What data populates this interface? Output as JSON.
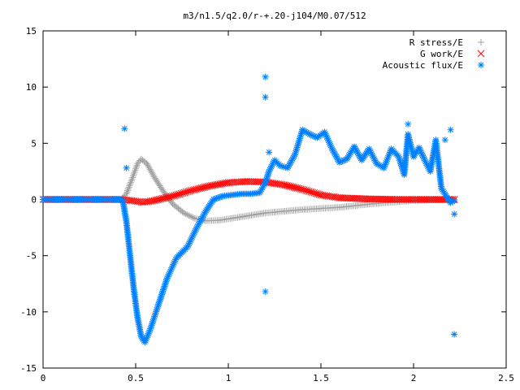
{
  "chart_data": {
    "type": "scatter",
    "title": "m3/n1.5/q2.0/r-+.20-j104/M0.07/512",
    "xlabel": "",
    "ylabel": "",
    "xlim": [
      0,
      2.5
    ],
    "ylim": [
      -15,
      15
    ],
    "xticks": [
      {
        "v": 0,
        "label": "0"
      },
      {
        "v": 0.5,
        "label": "0.5"
      },
      {
        "v": 1,
        "label": "1"
      },
      {
        "v": 1.5,
        "label": "1.5"
      },
      {
        "v": 2,
        "label": "2"
      },
      {
        "v": 2.5,
        "label": "2.5"
      }
    ],
    "yticks": [
      {
        "v": -15,
        "label": "-15"
      },
      {
        "v": -10,
        "label": "-10"
      },
      {
        "v": -5,
        "label": "-5"
      },
      {
        "v": 0,
        "label": "0"
      },
      {
        "v": 5,
        "label": "5"
      },
      {
        "v": 10,
        "label": "10"
      },
      {
        "v": 15,
        "label": "15"
      }
    ],
    "grid": false,
    "legend_position": "top-right",
    "series": [
      {
        "name": "R stress/E",
        "marker": "plus",
        "color": "#a0a0a0",
        "points": [
          [
            0,
            0
          ],
          [
            0.42,
            0
          ],
          [
            0.45,
            0.5
          ],
          [
            0.48,
            1.8
          ],
          [
            0.51,
            3.2
          ],
          [
            0.53,
            3.6
          ],
          [
            0.56,
            3.2
          ],
          [
            0.6,
            2.0
          ],
          [
            0.65,
            0.7
          ],
          [
            0.7,
            -0.4
          ],
          [
            0.76,
            -1.2
          ],
          [
            0.82,
            -1.7
          ],
          [
            0.88,
            -1.9
          ],
          [
            0.95,
            -1.85
          ],
          [
            1.05,
            -1.6
          ],
          [
            1.2,
            -1.2
          ],
          [
            1.4,
            -0.9
          ],
          [
            1.6,
            -0.7
          ],
          [
            1.8,
            -0.35
          ],
          [
            2.0,
            -0.1
          ],
          [
            2.22,
            0
          ]
        ]
      },
      {
        "name": "G work/E",
        "marker": "cross",
        "color": "#ff0000",
        "points": [
          [
            0,
            0
          ],
          [
            0.42,
            0
          ],
          [
            0.48,
            -0.1
          ],
          [
            0.54,
            -0.25
          ],
          [
            0.6,
            -0.1
          ],
          [
            0.7,
            0.3
          ],
          [
            0.8,
            0.8
          ],
          [
            0.9,
            1.2
          ],
          [
            1.0,
            1.5
          ],
          [
            1.1,
            1.6
          ],
          [
            1.2,
            1.55
          ],
          [
            1.3,
            1.3
          ],
          [
            1.4,
            0.9
          ],
          [
            1.5,
            0.4
          ],
          [
            1.6,
            0.15
          ],
          [
            1.75,
            0.05
          ],
          [
            1.9,
            0
          ],
          [
            2.22,
            0
          ]
        ]
      },
      {
        "name": "Acoustic flux/E",
        "marker": "star",
        "color": "#0080ff",
        "points": [
          [
            0,
            0
          ],
          [
            0.43,
            0
          ],
          [
            0.45,
            -2
          ],
          [
            0.47,
            -5
          ],
          [
            0.49,
            -8
          ],
          [
            0.51,
            -10.5
          ],
          [
            0.53,
            -12.2
          ],
          [
            0.55,
            -12.7
          ],
          [
            0.58,
            -11.5
          ],
          [
            0.62,
            -9.5
          ],
          [
            0.67,
            -7
          ],
          [
            0.72,
            -5.2
          ],
          [
            0.78,
            -4.2
          ],
          [
            0.83,
            -2.5
          ],
          [
            0.88,
            -1
          ],
          [
            0.92,
            0
          ],
          [
            0.97,
            0.3
          ],
          [
            1.02,
            0.4
          ],
          [
            1.07,
            0.5
          ],
          [
            1.12,
            0.5
          ],
          [
            1.17,
            0.6
          ],
          [
            1.2,
            1.5
          ],
          [
            1.22,
            2.5
          ],
          [
            1.25,
            3.5
          ],
          [
            1.28,
            3.0
          ],
          [
            1.32,
            2.8
          ],
          [
            1.36,
            4.0
          ],
          [
            1.4,
            6.2
          ],
          [
            1.44,
            5.8
          ],
          [
            1.48,
            5.5
          ],
          [
            1.52,
            6.0
          ],
          [
            1.56,
            4.5
          ],
          [
            1.6,
            3.3
          ],
          [
            1.64,
            3.6
          ],
          [
            1.68,
            4.7
          ],
          [
            1.72,
            3.5
          ],
          [
            1.76,
            4.5
          ],
          [
            1.8,
            3.2
          ],
          [
            1.84,
            2.8
          ],
          [
            1.88,
            4.5
          ],
          [
            1.92,
            3.8
          ],
          [
            1.95,
            2.2
          ],
          [
            1.97,
            5.8
          ],
          [
            2.0,
            3.8
          ],
          [
            2.03,
            4.6
          ],
          [
            2.06,
            3.5
          ],
          [
            2.09,
            2.5
          ],
          [
            2.12,
            5.3
          ],
          [
            2.15,
            1.0
          ],
          [
            2.18,
            0.2
          ],
          [
            2.2,
            -0.3
          ],
          [
            2.22,
            -0.1
          ]
        ]
      }
    ],
    "outliers": [
      [
        0.44,
        6.3
      ],
      [
        0.45,
        2.8
      ],
      [
        1.2,
        10.9
      ],
      [
        1.2,
        9.1
      ],
      [
        1.2,
        -8.2
      ],
      [
        1.22,
        4.2
      ],
      [
        1.97,
        6.7
      ],
      [
        2.17,
        5.3
      ],
      [
        2.2,
        6.2
      ],
      [
        2.22,
        -1.3
      ],
      [
        2.22,
        -12.0
      ]
    ]
  }
}
